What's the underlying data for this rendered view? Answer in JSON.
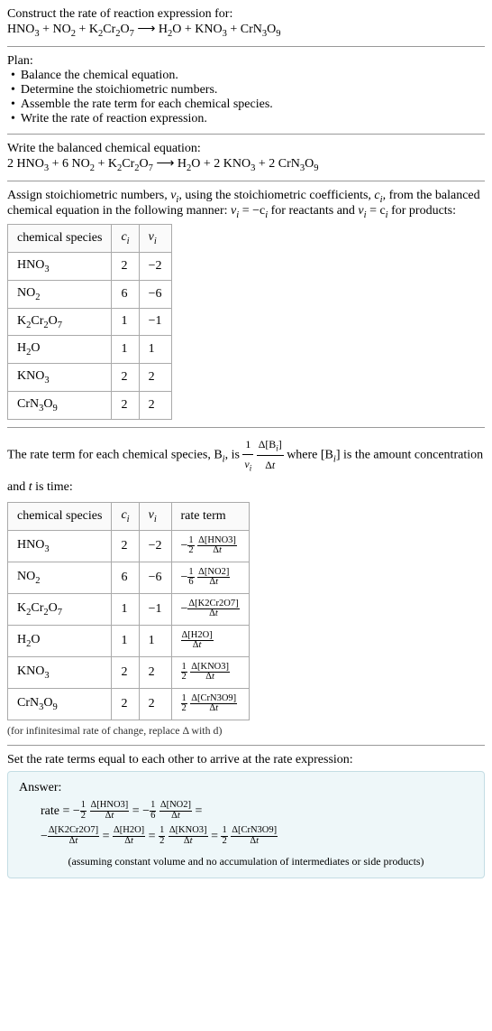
{
  "header": {
    "construct_line": "Construct the rate of reaction expression for:",
    "equation_unbalanced_parts": [
      "HNO",
      "3",
      " + NO",
      "2",
      " + K",
      "2",
      "Cr",
      "2",
      "O",
      "7",
      "  ⟶  H",
      "2",
      "O + KNO",
      "3",
      " + CrN",
      "3",
      "O",
      "9"
    ]
  },
  "plan": {
    "title": "Plan:",
    "items": [
      "Balance the chemical equation.",
      "Determine the stoichiometric numbers.",
      "Assemble the rate term for each chemical species.",
      "Write the rate of reaction expression."
    ]
  },
  "balanced": {
    "title": "Write the balanced chemical equation:",
    "parts": [
      "2 HNO",
      "3",
      " + 6 NO",
      "2",
      " + K",
      "2",
      "Cr",
      "2",
      "O",
      "7",
      "  ⟶  H",
      "2",
      "O + 2 KNO",
      "3",
      " + 2 CrN",
      "3",
      "O",
      "9"
    ]
  },
  "assign": {
    "text_a": "Assign stoichiometric numbers, ",
    "nu_i": "ν",
    "text_b": ", using the stoichiometric coefficients, ",
    "c_i": "c",
    "text_c": ", from the balanced chemical equation in the following manner: ",
    "rel1a": "ν",
    "rel1b": " = −c",
    "text_d": " for reactants and ",
    "rel2a": "ν",
    "rel2b": " = c",
    "text_e": " for products:"
  },
  "table1": {
    "headers": [
      "chemical species",
      "c",
      "ν"
    ],
    "header_sub": "i",
    "rows": [
      {
        "species_parts": [
          "HNO",
          "3"
        ],
        "c": "2",
        "v": "−2"
      },
      {
        "species_parts": [
          "NO",
          "2"
        ],
        "c": "6",
        "v": "−6"
      },
      {
        "species_parts": [
          "K",
          "2",
          "Cr",
          "2",
          "O",
          "7"
        ],
        "c": "1",
        "v": "−1"
      },
      {
        "species_parts": [
          "H",
          "2",
          "O"
        ],
        "c": "1",
        "v": "1"
      },
      {
        "species_parts": [
          "KNO",
          "3"
        ],
        "c": "2",
        "v": "2"
      },
      {
        "species_parts": [
          "CrN",
          "3",
          "O",
          "9"
        ],
        "c": "2",
        "v": "2"
      }
    ]
  },
  "rateterm": {
    "text_a": "The rate term for each chemical species, B",
    "text_b": ", is ",
    "frac1_num": "1",
    "frac1_den_a": "ν",
    "frac2_num_a": "Δ[B",
    "frac2_num_b": "]",
    "frac2_den": "Δt",
    "text_c": " where [B",
    "text_d": "] is the amount concentration and ",
    "t_var": "t",
    "text_e": " is time:"
  },
  "table2": {
    "headers": [
      "chemical species",
      "c",
      "ν",
      "rate term"
    ],
    "rows": [
      {
        "species_parts": [
          "HNO",
          "3"
        ],
        "c": "2",
        "v": "−2",
        "sign": "−",
        "coef_num": "1",
        "coef_den": "2",
        "delta": "Δ[HNO3]"
      },
      {
        "species_parts": [
          "NO",
          "2"
        ],
        "c": "6",
        "v": "−6",
        "sign": "−",
        "coef_num": "1",
        "coef_den": "6",
        "delta": "Δ[NO2]"
      },
      {
        "species_parts": [
          "K",
          "2",
          "Cr",
          "2",
          "O",
          "7"
        ],
        "c": "1",
        "v": "−1",
        "sign": "−",
        "coef_num": "",
        "coef_den": "",
        "delta": "Δ[K2Cr2O7]"
      },
      {
        "species_parts": [
          "H",
          "2",
          "O"
        ],
        "c": "1",
        "v": "1",
        "sign": "",
        "coef_num": "",
        "coef_den": "",
        "delta": "Δ[H2O]"
      },
      {
        "species_parts": [
          "KNO",
          "3"
        ],
        "c": "2",
        "v": "2",
        "sign": "",
        "coef_num": "1",
        "coef_den": "2",
        "delta": "Δ[KNO3]"
      },
      {
        "species_parts": [
          "CrN",
          "3",
          "O",
          "9"
        ],
        "c": "2",
        "v": "2",
        "sign": "",
        "coef_num": "1",
        "coef_den": "2",
        "delta": "Δ[CrN3O9]"
      }
    ],
    "dt": "Δt",
    "note": "(for infinitesimal rate of change, replace Δ with d)"
  },
  "final": {
    "title": "Set the rate terms equal to each other to arrive at the rate expression:",
    "answer_label": "Answer:",
    "rate_word": "rate = ",
    "terms": [
      {
        "sign": "−",
        "coef_num": "1",
        "coef_den": "2",
        "delta": "Δ[HNO3]",
        "sep": " = "
      },
      {
        "sign": "−",
        "coef_num": "1",
        "coef_den": "6",
        "delta": "Δ[NO2]",
        "sep": " ="
      },
      {
        "sign": "−",
        "coef_num": "",
        "coef_den": "",
        "delta": "Δ[K2Cr2O7]",
        "sep": " = "
      },
      {
        "sign": "",
        "coef_num": "",
        "coef_den": "",
        "delta": "Δ[H2O]",
        "sep": " = "
      },
      {
        "sign": "",
        "coef_num": "1",
        "coef_den": "2",
        "delta": "Δ[KNO3]",
        "sep": " = "
      },
      {
        "sign": "",
        "coef_num": "1",
        "coef_den": "2",
        "delta": "Δ[CrN3O9]",
        "sep": ""
      }
    ],
    "dt": "Δt",
    "assume": "(assuming constant volume and no accumulation of intermediates or side products)"
  },
  "sub_i": "i"
}
